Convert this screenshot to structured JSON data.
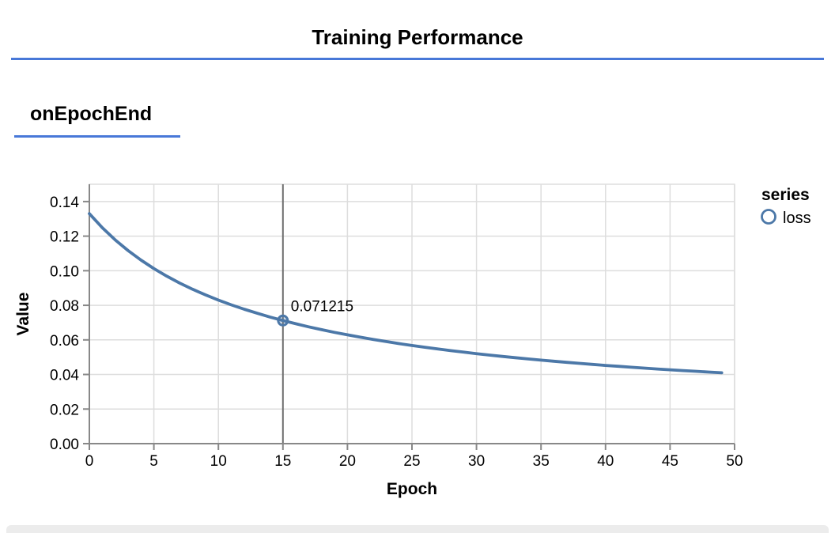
{
  "header": {
    "title": "Training Performance"
  },
  "section": {
    "heading": "onEpochEnd"
  },
  "colors": {
    "accent_rule": "#4878d8",
    "series_blue": "#4c78a8",
    "grid": "#dddddd",
    "axis": "#888888",
    "hover_rule": "#6e6e6e",
    "text": "#000000",
    "bottom_strip": "#ececec"
  },
  "chart_data": {
    "type": "line",
    "title": "",
    "xlabel": "Epoch",
    "ylabel": "Value",
    "xlim": [
      0,
      50
    ],
    "ylim": [
      0,
      0.15
    ],
    "grid": true,
    "x_ticks": [
      0,
      5,
      10,
      15,
      20,
      25,
      30,
      35,
      40,
      45,
      50
    ],
    "y_ticks": [
      0,
      0.02,
      0.04,
      0.06,
      0.08,
      0.1,
      0.12,
      0.14
    ],
    "y_tick_labels": [
      "0.00",
      "0.02",
      "0.04",
      "0.06",
      "0.08",
      "0.10",
      "0.12",
      "0.14"
    ],
    "legend": {
      "position": "right",
      "title": "series",
      "entries": [
        {
          "label": "loss",
          "color": "#4c78a8",
          "symbol": "circle"
        }
      ]
    },
    "x": [
      0,
      1,
      2,
      3,
      4,
      5,
      6,
      7,
      8,
      9,
      10,
      11,
      12,
      13,
      14,
      15,
      16,
      17,
      18,
      19,
      20,
      21,
      22,
      23,
      24,
      25,
      26,
      27,
      28,
      29,
      30,
      31,
      32,
      33,
      34,
      35,
      36,
      37,
      38,
      39,
      40,
      41,
      42,
      43,
      44,
      45,
      46,
      47,
      48,
      49
    ],
    "series": [
      {
        "name": "loss",
        "color": "#4c78a8",
        "values": [
          0.133,
          0.124891,
          0.117833,
          0.111632,
          0.106141,
          0.101244,
          0.096851,
          0.092886,
          0.089291,
          0.086016,
          0.08302,
          0.080269,
          0.077734,
          0.07539,
          0.073217,
          0.071215,
          0.069314,
          0.067554,
          0.065907,
          0.06436,
          0.062906,
          0.061537,
          0.060245,
          0.059023,
          0.057867,
          0.056771,
          0.05573,
          0.054741,
          0.0538,
          0.052903,
          0.052047,
          0.05123,
          0.050448,
          0.0497,
          0.048984,
          0.048297,
          0.047639,
          0.047006,
          0.046397,
          0.045813,
          0.045249,
          0.044707,
          0.044184,
          0.043679,
          0.043193,
          0.042722,
          0.042268,
          0.041829,
          0.041404,
          0.040992
        ]
      }
    ],
    "tooltip": {
      "series": "loss",
      "epoch": 15,
      "value": 0.071215,
      "label": "0.071215"
    }
  }
}
